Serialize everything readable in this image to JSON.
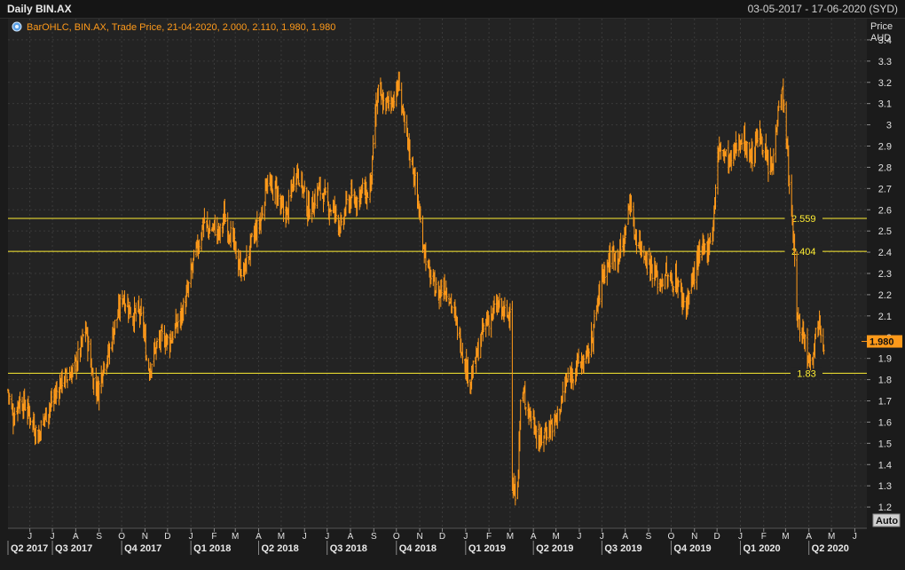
{
  "header": {
    "title": "Daily BIN.AX",
    "date_range": "03-05-2017 - 17-06-2020 (SYD)"
  },
  "legend": {
    "text": "BarOHLC, BIN.AX, Trade Price, 21-04-2020, 2.000, 2.110, 1.980, 1.980",
    "icon": "gear-icon"
  },
  "axis": {
    "price_label": "Price",
    "unit_label": "AUD",
    "auto_button": "Auto",
    "last_value": "1.980"
  },
  "colors": {
    "background": "#1b1b1b",
    "series": "#ff9a1a",
    "reference_lines": "#ffee33",
    "last_badge": "#ff9a1a"
  },
  "chart_data": {
    "type": "bar_ohlc",
    "title": "Daily BIN.AX",
    "ylabel": "Price AUD",
    "ylim": [
      1.1,
      3.5
    ],
    "y_ticks": [
      "1.2",
      "1.3",
      "1.4",
      "1.5",
      "1.6",
      "1.7",
      "1.8",
      "1.9",
      "2",
      "2.1",
      "2.2",
      "2.3",
      "2.4",
      "2.5",
      "2.6",
      "2.7",
      "2.8",
      "2.9",
      "3",
      "3.1",
      "3.2",
      "3.3",
      "3.4"
    ],
    "x_range": [
      "2017-05-03",
      "2020-06-17"
    ],
    "month_labels": [
      {
        "label": "J",
        "date": "2017-06-01"
      },
      {
        "label": "J",
        "date": "2017-07-01"
      },
      {
        "label": "A",
        "date": "2017-08-01"
      },
      {
        "label": "S",
        "date": "2017-09-01"
      },
      {
        "label": "O",
        "date": "2017-10-01"
      },
      {
        "label": "N",
        "date": "2017-11-01"
      },
      {
        "label": "D",
        "date": "2017-12-01"
      },
      {
        "label": "J",
        "date": "2018-01-01"
      },
      {
        "label": "F",
        "date": "2018-02-01"
      },
      {
        "label": "M",
        "date": "2018-03-01"
      },
      {
        "label": "A",
        "date": "2018-04-01"
      },
      {
        "label": "M",
        "date": "2018-05-01"
      },
      {
        "label": "J",
        "date": "2018-06-01"
      },
      {
        "label": "J",
        "date": "2018-07-01"
      },
      {
        "label": "A",
        "date": "2018-08-01"
      },
      {
        "label": "S",
        "date": "2018-09-01"
      },
      {
        "label": "O",
        "date": "2018-10-01"
      },
      {
        "label": "N",
        "date": "2018-11-01"
      },
      {
        "label": "D",
        "date": "2018-12-01"
      },
      {
        "label": "J",
        "date": "2019-01-01"
      },
      {
        "label": "F",
        "date": "2019-02-01"
      },
      {
        "label": "M",
        "date": "2019-03-01"
      },
      {
        "label": "A",
        "date": "2019-04-01"
      },
      {
        "label": "M",
        "date": "2019-05-01"
      },
      {
        "label": "J",
        "date": "2019-06-01"
      },
      {
        "label": "J",
        "date": "2019-07-01"
      },
      {
        "label": "A",
        "date": "2019-08-01"
      },
      {
        "label": "S",
        "date": "2019-09-01"
      },
      {
        "label": "O",
        "date": "2019-10-01"
      },
      {
        "label": "N",
        "date": "2019-11-01"
      },
      {
        "label": "D",
        "date": "2019-12-01"
      },
      {
        "label": "J",
        "date": "2020-01-01"
      },
      {
        "label": "F",
        "date": "2020-02-01"
      },
      {
        "label": "M",
        "date": "2020-03-01"
      },
      {
        "label": "A",
        "date": "2020-04-01"
      },
      {
        "label": "M",
        "date": "2020-05-01"
      },
      {
        "label": "J",
        "date": "2020-06-01"
      }
    ],
    "quarter_labels": [
      {
        "label": "Q2 2017",
        "date": "2017-04-01"
      },
      {
        "label": "Q3 2017",
        "date": "2017-07-01"
      },
      {
        "label": "Q4 2017",
        "date": "2017-10-01"
      },
      {
        "label": "Q1 2018",
        "date": "2018-01-01"
      },
      {
        "label": "Q2 2018",
        "date": "2018-04-01"
      },
      {
        "label": "Q3 2018",
        "date": "2018-07-01"
      },
      {
        "label": "Q4 2018",
        "date": "2018-10-01"
      },
      {
        "label": "Q1 2019",
        "date": "2019-01-01"
      },
      {
        "label": "Q2 2019",
        "date": "2019-04-01"
      },
      {
        "label": "Q3 2019",
        "date": "2019-07-01"
      },
      {
        "label": "Q4 2019",
        "date": "2019-10-01"
      },
      {
        "label": "Q1 2020",
        "date": "2020-01-01"
      },
      {
        "label": "Q2 2020",
        "date": "2020-04-01"
      }
    ],
    "reference_lines": [
      {
        "value": 2.559,
        "label": "2.559"
      },
      {
        "value": 2.404,
        "label": "2.404"
      },
      {
        "value": 1.83,
        "label": "1.83"
      }
    ],
    "series": [
      {
        "points": [
          [
            "2017-05-03",
            1.75
          ],
          [
            "2017-05-10",
            1.62
          ],
          [
            "2017-05-17",
            1.7
          ],
          [
            "2017-05-26",
            1.68
          ],
          [
            "2017-06-05",
            1.6
          ],
          [
            "2017-06-12",
            1.53
          ],
          [
            "2017-06-20",
            1.62
          ],
          [
            "2017-06-28",
            1.68
          ],
          [
            "2017-07-05",
            1.73
          ],
          [
            "2017-07-14",
            1.8
          ],
          [
            "2017-07-24",
            1.82
          ],
          [
            "2017-08-01",
            1.87
          ],
          [
            "2017-08-08",
            1.95
          ],
          [
            "2017-08-14",
            2.05
          ],
          [
            "2017-08-18",
            1.95
          ],
          [
            "2017-08-24",
            1.8
          ],
          [
            "2017-08-31",
            1.75
          ],
          [
            "2017-09-07",
            1.88
          ],
          [
            "2017-09-14",
            1.92
          ],
          [
            "2017-09-21",
            2.05
          ],
          [
            "2017-09-26",
            2.1
          ],
          [
            "2017-10-02",
            2.2
          ],
          [
            "2017-10-09",
            2.15
          ],
          [
            "2017-10-16",
            2.1
          ],
          [
            "2017-10-23",
            2.12
          ],
          [
            "2017-10-30",
            2.05
          ],
          [
            "2017-11-03",
            1.9
          ],
          [
            "2017-11-07",
            1.85
          ],
          [
            "2017-11-15",
            1.95
          ],
          [
            "2017-11-24",
            2.0
          ],
          [
            "2017-12-04",
            1.98
          ],
          [
            "2017-12-12",
            2.05
          ],
          [
            "2017-12-19",
            2.1
          ],
          [
            "2017-12-27",
            2.2
          ],
          [
            "2018-01-04",
            2.35
          ],
          [
            "2018-01-12",
            2.45
          ],
          [
            "2018-01-18",
            2.55
          ],
          [
            "2018-01-25",
            2.5
          ],
          [
            "2018-02-01",
            2.52
          ],
          [
            "2018-02-08",
            2.48
          ],
          [
            "2018-02-14",
            2.57
          ],
          [
            "2018-02-21",
            2.5
          ],
          [
            "2018-02-26",
            2.45
          ],
          [
            "2018-03-05",
            2.35
          ],
          [
            "2018-03-12",
            2.3
          ],
          [
            "2018-03-19",
            2.4
          ],
          [
            "2018-03-26",
            2.48
          ],
          [
            "2018-04-04",
            2.55
          ],
          [
            "2018-04-12",
            2.75
          ],
          [
            "2018-04-19",
            2.68
          ],
          [
            "2018-04-24",
            2.7
          ],
          [
            "2018-05-01",
            2.6
          ],
          [
            "2018-05-09",
            2.58
          ],
          [
            "2018-05-15",
            2.7
          ],
          [
            "2018-05-21",
            2.8
          ],
          [
            "2018-05-30",
            2.7
          ],
          [
            "2018-06-05",
            2.6
          ],
          [
            "2018-06-12",
            2.62
          ],
          [
            "2018-06-19",
            2.7
          ],
          [
            "2018-06-25",
            2.68
          ],
          [
            "2018-07-02",
            2.62
          ],
          [
            "2018-07-10",
            2.6
          ],
          [
            "2018-07-16",
            2.55
          ],
          [
            "2018-07-20",
            2.5
          ],
          [
            "2018-07-26",
            2.62
          ],
          [
            "2018-08-02",
            2.65
          ],
          [
            "2018-08-10",
            2.65
          ],
          [
            "2018-08-16",
            2.7
          ],
          [
            "2018-08-23",
            2.66
          ],
          [
            "2018-08-29",
            2.75
          ],
          [
            "2018-09-03",
            3.05
          ],
          [
            "2018-09-07",
            3.15
          ],
          [
            "2018-09-13",
            3.1
          ],
          [
            "2018-09-19",
            3.1
          ],
          [
            "2018-09-25",
            3.12
          ],
          [
            "2018-10-01",
            3.15
          ],
          [
            "2018-10-05",
            3.2
          ],
          [
            "2018-10-11",
            3.0
          ],
          [
            "2018-10-17",
            2.9
          ],
          [
            "2018-10-23",
            2.8
          ],
          [
            "2018-10-29",
            2.65
          ],
          [
            "2018-11-03",
            2.5
          ],
          [
            "2018-11-08",
            2.4
          ],
          [
            "2018-11-13",
            2.3
          ],
          [
            "2018-11-19",
            2.25
          ],
          [
            "2018-11-26",
            2.2
          ],
          [
            "2018-12-03",
            2.25
          ],
          [
            "2018-12-10",
            2.2
          ],
          [
            "2018-12-17",
            2.1
          ],
          [
            "2018-12-24",
            2.0
          ],
          [
            "2019-01-02",
            1.85
          ],
          [
            "2019-01-08",
            1.8
          ],
          [
            "2019-01-15",
            1.9
          ],
          [
            "2019-01-22",
            2.0
          ],
          [
            "2019-01-29",
            2.08
          ],
          [
            "2019-02-05",
            2.1
          ],
          [
            "2019-02-12",
            2.15
          ],
          [
            "2019-02-19",
            2.12
          ],
          [
            "2019-02-26",
            2.1
          ],
          [
            "2019-03-01",
            2.15
          ],
          [
            "2019-03-04",
            1.3
          ],
          [
            "2019-03-07",
            1.25
          ],
          [
            "2019-03-12",
            1.38
          ],
          [
            "2019-03-15",
            1.7
          ],
          [
            "2019-03-20",
            1.72
          ],
          [
            "2019-03-26",
            1.65
          ],
          [
            "2019-04-02",
            1.6
          ],
          [
            "2019-04-09",
            1.5
          ],
          [
            "2019-04-15",
            1.55
          ],
          [
            "2019-04-23",
            1.58
          ],
          [
            "2019-04-30",
            1.6
          ],
          [
            "2019-05-07",
            1.68
          ],
          [
            "2019-05-14",
            1.78
          ],
          [
            "2019-05-21",
            1.82
          ],
          [
            "2019-05-28",
            1.87
          ],
          [
            "2019-06-04",
            1.88
          ],
          [
            "2019-06-11",
            1.9
          ],
          [
            "2019-06-18",
            2.0
          ],
          [
            "2019-06-25",
            2.15
          ],
          [
            "2019-07-02",
            2.3
          ],
          [
            "2019-07-09",
            2.35
          ],
          [
            "2019-07-16",
            2.4
          ],
          [
            "2019-07-23",
            2.38
          ],
          [
            "2019-07-30",
            2.45
          ],
          [
            "2019-08-05",
            2.6
          ],
          [
            "2019-08-08",
            2.65
          ],
          [
            "2019-08-12",
            2.5
          ],
          [
            "2019-08-19",
            2.45
          ],
          [
            "2019-08-26",
            2.4
          ],
          [
            "2019-09-02",
            2.35
          ],
          [
            "2019-09-09",
            2.3
          ],
          [
            "2019-09-16",
            2.25
          ],
          [
            "2019-09-23",
            2.3
          ],
          [
            "2019-09-30",
            2.25
          ],
          [
            "2019-10-07",
            2.28
          ],
          [
            "2019-10-14",
            2.2
          ],
          [
            "2019-10-21",
            2.15
          ],
          [
            "2019-10-28",
            2.25
          ],
          [
            "2019-11-04",
            2.35
          ],
          [
            "2019-11-11",
            2.4
          ],
          [
            "2019-11-18",
            2.42
          ],
          [
            "2019-11-25",
            2.5
          ],
          [
            "2019-12-02",
            2.85
          ],
          [
            "2019-12-06",
            2.9
          ],
          [
            "2019-12-12",
            2.85
          ],
          [
            "2019-12-19",
            2.82
          ],
          [
            "2019-12-27",
            2.9
          ],
          [
            "2020-01-03",
            2.95
          ],
          [
            "2020-01-10",
            2.88
          ],
          [
            "2020-01-17",
            2.85
          ],
          [
            "2020-01-24",
            2.95
          ],
          [
            "2020-01-31",
            2.92
          ],
          [
            "2020-02-06",
            2.8
          ],
          [
            "2020-02-13",
            2.8
          ],
          [
            "2020-02-20",
            3.1
          ],
          [
            "2020-02-26",
            3.15
          ],
          [
            "2020-03-02",
            2.95
          ],
          [
            "2020-03-06",
            2.7
          ],
          [
            "2020-03-11",
            2.5
          ],
          [
            "2020-03-16",
            2.1
          ],
          [
            "2020-03-20",
            2.05
          ],
          [
            "2020-03-26",
            2.0
          ],
          [
            "2020-04-01",
            1.9
          ],
          [
            "2020-04-07",
            1.95
          ],
          [
            "2020-04-14",
            2.1
          ],
          [
            "2020-04-21",
            1.98
          ]
        ]
      }
    ]
  }
}
